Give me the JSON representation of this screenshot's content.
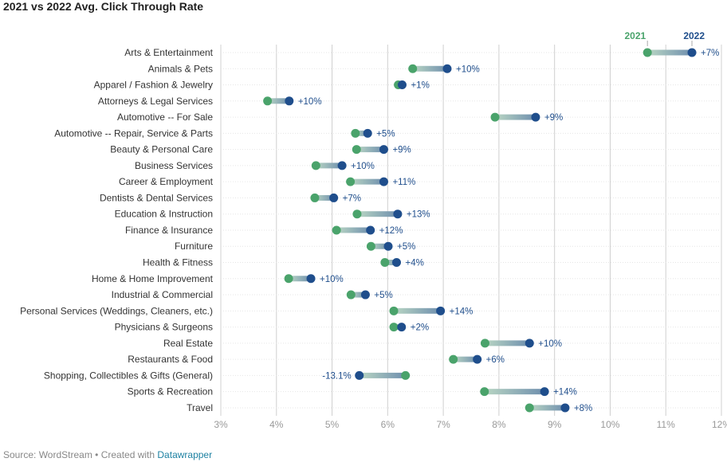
{
  "title": "2021 vs 2022 Avg. Click Through Rate",
  "footer": {
    "source": "Source: WordStream • Created with ",
    "link": "Datawrapper"
  },
  "colors": {
    "y2021": "#4aa36b",
    "y2022": "#1f4e8c",
    "connector": "#9bb1c4",
    "grid": "#d0d0d0",
    "label": "#1f4e8c"
  },
  "chart_data": {
    "type": "dot-range",
    "x_ticks": [
      "3%",
      "4%",
      "5%",
      "6%",
      "7%",
      "8%",
      "9%",
      "10%",
      "11%",
      "12%"
    ],
    "xlim": [
      3,
      12
    ],
    "legend": [
      "2021",
      "2022"
    ],
    "categories": [
      "Arts & Entertainment",
      "Animals & Pets",
      "Apparel / Fashion & Jewelry",
      "Attorneys & Legal Services",
      "Automotive -- For Sale",
      "Automotive -- Repair, Service & Parts",
      "Beauty & Personal Care",
      "Business Services",
      "Career & Employment",
      "Dentists & Dental Services",
      "Education & Instruction",
      "Finance & Insurance",
      "Furniture",
      "Health & Fitness",
      "Home & Home Improvement",
      "Industrial & Commercial",
      "Personal Services (Weddings, Cleaners, etc.)",
      "Physicians & Surgeons",
      "Real Estate",
      "Restaurants & Food",
      "Shopping, Collectibles & Gifts (General)",
      "Sports & Recreation",
      "Travel"
    ],
    "series": [
      {
        "name": "2021",
        "values": [
          10.67,
          6.45,
          6.19,
          3.84,
          7.93,
          5.42,
          5.44,
          4.71,
          5.33,
          4.69,
          5.45,
          5.08,
          5.7,
          5.95,
          4.22,
          5.34,
          6.11,
          6.11,
          7.75,
          7.18,
          6.32,
          7.74,
          8.55
        ]
      },
      {
        "name": "2022",
        "values": [
          11.47,
          7.07,
          6.26,
          4.23,
          8.66,
          5.64,
          5.93,
          5.18,
          5.93,
          5.03,
          6.18,
          5.69,
          6.01,
          6.16,
          4.62,
          5.6,
          6.95,
          6.25,
          8.55,
          7.61,
          5.49,
          8.82,
          9.19
        ]
      }
    ],
    "change_labels": [
      "+7%",
      "+10%",
      "+1%",
      "+10%",
      "+9%",
      "+5%",
      "+9%",
      "+10%",
      "+11%",
      "+7%",
      "+13%",
      "+12%",
      "+5%",
      "+4%",
      "+10%",
      "+5%",
      "+14%",
      "+2%",
      "+10%",
      "+6%",
      "-13.1%",
      "+14%",
      "+8%"
    ],
    "grid": true
  }
}
